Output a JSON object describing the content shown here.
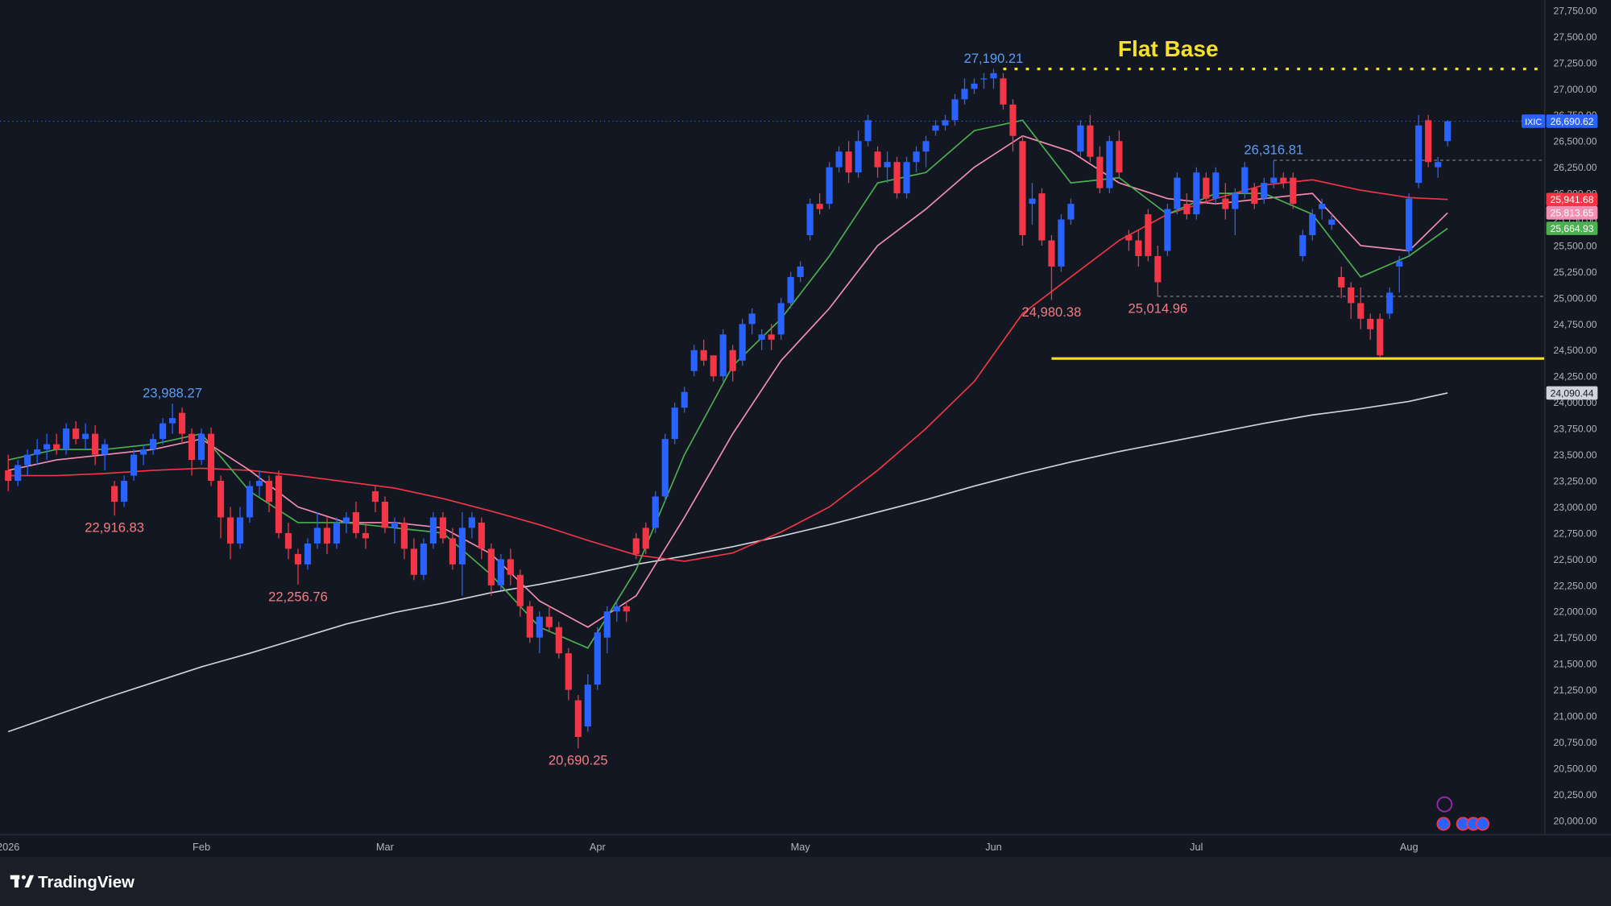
{
  "chart_data": {
    "type": "candlestick",
    "title": "Flat Base",
    "symbol": "IXIC",
    "watermark": "TradingView",
    "up_color": "#2962ff",
    "down_color": "#f23645",
    "last_label": "26,690.62",
    "ohlc": [
      [
        23350,
        23500,
        23150,
        23250
      ],
      [
        23250,
        23450,
        23200,
        23400
      ],
      [
        23400,
        23550,
        23300,
        23500
      ],
      [
        23500,
        23650,
        23400,
        23550
      ],
      [
        23550,
        23700,
        23450,
        23600
      ],
      [
        23600,
        23700,
        23500,
        23550
      ],
      [
        23550,
        23800,
        23500,
        23750
      ],
      [
        23750,
        23820,
        23600,
        23650
      ],
      [
        23650,
        23800,
        23550,
        23700
      ],
      [
        23700,
        23780,
        23400,
        23500
      ],
      [
        23500,
        23650,
        23350,
        23600
      ],
      [
        23200,
        23250,
        22916.83,
        23050
      ],
      [
        23050,
        23300,
        23000,
        23250
      ],
      [
        23300,
        23550,
        23250,
        23500
      ],
      [
        23500,
        23600,
        23400,
        23550
      ],
      [
        23550,
        23700,
        23500,
        23650
      ],
      [
        23650,
        23850,
        23600,
        23800
      ],
      [
        23800,
        23988.27,
        23700,
        23850
      ],
      [
        23900,
        23950,
        23600,
        23700
      ],
      [
        23700,
        23750,
        23300,
        23450
      ],
      [
        23450,
        23750,
        23400,
        23700
      ],
      [
        23700,
        23760,
        23200,
        23250
      ],
      [
        23250,
        23300,
        22700,
        22900
      ],
      [
        22900,
        23000,
        22500,
        22650
      ],
      [
        22650,
        23000,
        22600,
        22900
      ],
      [
        22900,
        23250,
        22850,
        23200
      ],
      [
        23200,
        23350,
        23100,
        23250
      ],
      [
        23250,
        23300,
        22950,
        23050
      ],
      [
        23300,
        23350,
        22700,
        22750
      ],
      [
        22750,
        22850,
        22500,
        22600
      ],
      [
        22550,
        22600,
        22256.76,
        22450
      ],
      [
        22450,
        22700,
        22400,
        22650
      ],
      [
        22650,
        22950,
        22600,
        22800
      ],
      [
        22800,
        22900,
        22550,
        22650
      ],
      [
        22650,
        22900,
        22600,
        22850
      ],
      [
        22850,
        22950,
        22750,
        22900
      ],
      [
        22950,
        23050,
        22700,
        22750
      ],
      [
        22750,
        22850,
        22600,
        22700
      ],
      [
        23150,
        23200,
        22950,
        23050
      ],
      [
        23050,
        23100,
        22750,
        22800
      ],
      [
        22800,
        22900,
        22650,
        22850
      ],
      [
        22850,
        22900,
        22500,
        22600
      ],
      [
        22600,
        22700,
        22300,
        22350
      ],
      [
        22350,
        22700,
        22300,
        22650
      ],
      [
        22650,
        22950,
        22600,
        22900
      ],
      [
        22900,
        22950,
        22650,
        22700
      ],
      [
        22700,
        22800,
        22400,
        22450
      ],
      [
        22450,
        22950,
        22150,
        22800
      ],
      [
        22800,
        22950,
        22700,
        22900
      ],
      [
        22850,
        22900,
        22500,
        22600
      ],
      [
        22600,
        22650,
        22150,
        22250
      ],
      [
        22250,
        22550,
        22200,
        22500
      ],
      [
        22500,
        22600,
        22250,
        22350
      ],
      [
        22350,
        22400,
        21950,
        22050
      ],
      [
        22050,
        22100,
        21700,
        21750
      ],
      [
        21750,
        22000,
        21600,
        21950
      ],
      [
        21950,
        22050,
        21800,
        21850
      ],
      [
        21850,
        21900,
        21550,
        21600
      ],
      [
        21600,
        21650,
        21150,
        21250
      ],
      [
        21150,
        21200,
        20690.25,
        20800
      ],
      [
        20900,
        21400,
        20850,
        21300
      ],
      [
        21300,
        21850,
        21250,
        21800
      ],
      [
        21750,
        22050,
        21600,
        22000
      ],
      [
        22000,
        22100,
        21900,
        22050
      ],
      [
        22050,
        22100,
        21900,
        22000
      ],
      [
        22700,
        22750,
        22500,
        22550
      ],
      [
        22800,
        22850,
        22550,
        22600
      ],
      [
        22800,
        23150,
        22750,
        23100
      ],
      [
        23100,
        23700,
        23050,
        23650
      ],
      [
        23650,
        24000,
        23600,
        23950
      ],
      [
        23950,
        24150,
        23900,
        24100
      ],
      [
        24300,
        24550,
        24250,
        24500
      ],
      [
        24500,
        24600,
        24350,
        24400
      ],
      [
        24450,
        24450,
        24200,
        24250
      ],
      [
        24250,
        24700,
        24200,
        24650
      ],
      [
        24500,
        24550,
        24200,
        24300
      ],
      [
        24400,
        24800,
        24350,
        24750
      ],
      [
        24750,
        24900,
        24650,
        24850
      ],
      [
        24600,
        24700,
        24500,
        24650
      ],
      [
        24650,
        24750,
        24500,
        24600
      ],
      [
        24650,
        25000,
        24600,
        24950
      ],
      [
        24950,
        25250,
        24900,
        25200
      ],
      [
        25200,
        25350,
        25150,
        25300
      ],
      [
        25600,
        25950,
        25550,
        25900
      ],
      [
        25900,
        26000,
        25800,
        25850
      ],
      [
        25900,
        26300,
        25850,
        26250
      ],
      [
        26250,
        26450,
        26200,
        26400
      ],
      [
        26400,
        26500,
        26100,
        26200
      ],
      [
        26200,
        26600,
        26150,
        26500
      ],
      [
        26500,
        26750,
        26450,
        26700
      ],
      [
        26400,
        26450,
        26150,
        26250
      ],
      [
        26250,
        26400,
        26100,
        26300
      ],
      [
        26300,
        26350,
        25950,
        26000
      ],
      [
        26000,
        26350,
        25950,
        26300
      ],
      [
        26300,
        26450,
        26200,
        26400
      ],
      [
        26400,
        26550,
        26250,
        26500
      ],
      [
        26600,
        26700,
        26550,
        26650
      ],
      [
        26650,
        26750,
        26600,
        26700
      ],
      [
        26700,
        26950,
        26650,
        26900
      ],
      [
        26900,
        27100,
        26850,
        27000
      ],
      [
        27000,
        27100,
        26950,
        27050
      ],
      [
        27100,
        27150,
        27000,
        27100
      ],
      [
        27100,
        27190.21,
        27000,
        27150
      ],
      [
        27100,
        27150,
        26800,
        26850
      ],
      [
        26850,
        26900,
        26400,
        26550
      ],
      [
        26500,
        26550,
        25500,
        25600
      ],
      [
        25900,
        26100,
        25700,
        25950
      ],
      [
        26000,
        26050,
        25500,
        25550
      ],
      [
        25550,
        25600,
        24980.38,
        25300
      ],
      [
        25300,
        25800,
        25250,
        25750
      ],
      [
        25750,
        25950,
        25700,
        25900
      ],
      [
        26400,
        26700,
        26350,
        26650
      ],
      [
        26650,
        26750,
        26300,
        26350
      ],
      [
        26350,
        26450,
        26000,
        26050
      ],
      [
        26050,
        26550,
        26000,
        26500
      ],
      [
        26500,
        26600,
        26150,
        26200
      ],
      [
        25600,
        25650,
        25450,
        25550
      ],
      [
        25550,
        25650,
        25300,
        25400
      ],
      [
        25800,
        25850,
        25350,
        25400
      ],
      [
        25400,
        25500,
        25014.96,
        25150
      ],
      [
        25450,
        25900,
        25400,
        25850
      ],
      [
        25850,
        26200,
        25800,
        26150
      ],
      [
        25900,
        26000,
        25750,
        25800
      ],
      [
        25800,
        26250,
        25750,
        26200
      ],
      [
        26150,
        26200,
        25900,
        25950
      ],
      [
        25950,
        26250,
        25900,
        26200
      ],
      [
        25950,
        26100,
        25750,
        25850
      ],
      [
        25850,
        26050,
        25600,
        26000
      ],
      [
        26000,
        26300,
        25950,
        26250
      ],
      [
        26050,
        26100,
        25850,
        25900
      ],
      [
        25950,
        26150,
        25900,
        26100
      ],
      [
        26100,
        26316.81,
        26050,
        26150
      ],
      [
        26150,
        26200,
        26050,
        26100
      ],
      [
        26150,
        26200,
        25850,
        25900
      ],
      [
        25400,
        25650,
        25350,
        25600
      ],
      [
        25600,
        25850,
        25550,
        25800
      ],
      [
        25850,
        25950,
        25750,
        25900
      ],
      [
        25700,
        25800,
        25650,
        25750
      ],
      [
        25200,
        25300,
        25000,
        25100
      ],
      [
        25100,
        25150,
        24800,
        24950
      ],
      [
        24950,
        25100,
        24700,
        24800
      ],
      [
        24800,
        24850,
        24600,
        24700
      ],
      [
        24800,
        24850,
        24430,
        24450
      ],
      [
        24850,
        25100,
        24800,
        25050
      ],
      [
        25300,
        25400,
        25050,
        25350
      ],
      [
        25450,
        26000,
        25400,
        25950
      ],
      [
        26100,
        26750,
        26050,
        26650
      ],
      [
        26700,
        26750,
        26250,
        26300
      ],
      [
        26250,
        26350,
        26150,
        26300
      ],
      [
        26500,
        26700,
        26450,
        26690.62
      ]
    ],
    "ma_x": [
      0,
      5,
      10,
      15,
      20,
      25,
      30,
      35,
      40,
      45,
      50,
      55,
      60,
      65,
      70,
      75,
      80,
      85,
      90,
      95,
      100,
      105,
      110,
      115,
      120,
      125,
      130,
      135,
      140,
      145,
      149
    ],
    "series": [
      {
        "color": "#d1d4dc",
        "last_label": "24,090.44",
        "label_text_color": "#131722",
        "values": [
          20850,
          21010,
          21170,
          21320,
          21470,
          21600,
          21740,
          21880,
          21990,
          22080,
          22180,
          22260,
          22350,
          22450,
          22530,
          22620,
          22720,
          22830,
          22950,
          23070,
          23200,
          23320,
          23430,
          23530,
          23620,
          23710,
          23800,
          23880,
          23940,
          24010,
          24090.44
        ]
      },
      {
        "color": "#f23645",
        "last_label": "25,941.68",
        "label_text_color": "#ffffff",
        "values": [
          23300,
          23300,
          23320,
          23350,
          23370,
          23350,
          23300,
          23240,
          23180,
          23080,
          22960,
          22830,
          22680,
          22540,
          22480,
          22560,
          22760,
          23000,
          23350,
          23750,
          24200,
          24850,
          25200,
          25550,
          25800,
          25950,
          26080,
          26130,
          26030,
          25960,
          25941.68
        ]
      },
      {
        "color": "#f48fb1",
        "last_label": "25,813.65",
        "label_text_color": "#ffffff",
        "values": [
          23350,
          23450,
          23500,
          23550,
          23650,
          23350,
          23000,
          22850,
          22850,
          22800,
          22550,
          22100,
          21850,
          22150,
          22900,
          23700,
          24400,
          24900,
          25500,
          25850,
          26250,
          26550,
          26400,
          26100,
          25950,
          25900,
          25950,
          26000,
          25500,
          25450,
          25813.65
        ]
      },
      {
        "color": "#4caf50",
        "last_label": "25,664.93",
        "label_text_color": "#ffffff",
        "values": [
          23450,
          23550,
          23550,
          23600,
          23700,
          23150,
          22850,
          22850,
          22800,
          22750,
          22350,
          21850,
          21650,
          22400,
          23500,
          24350,
          24800,
          25400,
          26100,
          26200,
          26600,
          26700,
          26100,
          26150,
          25800,
          26000,
          26000,
          25800,
          25200,
          25400,
          25664.93
        ]
      }
    ],
    "extreme_labels": [
      {
        "index": 17,
        "at": "high",
        "label": "23,988.27"
      },
      {
        "index": 11,
        "at": "low",
        "label": "22,916.83"
      },
      {
        "index": 30,
        "at": "low",
        "label": "22,256.76"
      },
      {
        "index": 59,
        "at": "low",
        "label": "20,690.25"
      },
      {
        "index": 102,
        "at": "high",
        "label": "27,190.21"
      },
      {
        "index": 108,
        "at": "low",
        "label": "24,980.38"
      },
      {
        "index": 119,
        "at": "low",
        "label": "25,014.96"
      },
      {
        "index": 131,
        "at": "high",
        "label": "26,316.81"
      }
    ],
    "lines": [
      {
        "value": 27190.21,
        "from": 103,
        "color": "#f5e12b",
        "dash": "3 8",
        "width": 2.5
      },
      {
        "value": 24420,
        "from": 108,
        "color": "#f5e12b",
        "dash": "none",
        "width": 2.5
      },
      {
        "value": 26316.81,
        "from": 131,
        "color": "#787b86",
        "dash": "3 3",
        "width": 1
      },
      {
        "value": 25014.96,
        "from": 119,
        "color": "#787b86",
        "dash": "3 3",
        "width": 1
      }
    ],
    "xlim": [
      -0.85,
      159
    ],
    "xticks": [
      {
        "value": 0,
        "label": "2026"
      },
      {
        "value": 20,
        "label": "Feb"
      },
      {
        "value": 39,
        "label": "Mar"
      },
      {
        "value": 61,
        "label": "Apr"
      },
      {
        "value": 82,
        "label": "May"
      },
      {
        "value": 102,
        "label": "Jun"
      },
      {
        "value": 123,
        "label": "Jul"
      },
      {
        "value": 145,
        "label": "Aug"
      }
    ],
    "ylim": [
      19870,
      27850
    ],
    "yticks": [
      {
        "value": 20000,
        "label": "20,000.00"
      },
      {
        "value": 20250,
        "label": "20,250.00"
      },
      {
        "value": 20500,
        "label": "20,500.00"
      },
      {
        "value": 20750,
        "label": "20,750.00"
      },
      {
        "value": 21000,
        "label": "21,000.00"
      },
      {
        "value": 21250,
        "label": "21,250.00"
      },
      {
        "value": 21500,
        "label": "21,500.00"
      },
      {
        "value": 21750,
        "label": "21,750.00"
      },
      {
        "value": 22000,
        "label": "22,000.00"
      },
      {
        "value": 22250,
        "label": "22,250.00"
      },
      {
        "value": 22500,
        "label": "22,500.00"
      },
      {
        "value": 22750,
        "label": "22,750.00"
      },
      {
        "value": 23000,
        "label": "23,000.00"
      },
      {
        "value": 23250,
        "label": "23,250.00"
      },
      {
        "value": 23500,
        "label": "23,500.00"
      },
      {
        "value": 23750,
        "label": "23,750.00"
      },
      {
        "value": 24000,
        "label": "24,000.00"
      },
      {
        "value": 24250,
        "label": "24,250.00"
      },
      {
        "value": 24500,
        "label": "24,500.00"
      },
      {
        "value": 24750,
        "label": "24,750.00"
      },
      {
        "value": 25000,
        "label": "25,000.00"
      },
      {
        "value": 25250,
        "label": "25,250.00"
      },
      {
        "value": 25500,
        "label": "25,500.00"
      },
      {
        "value": 25750,
        "label": "25,750.00"
      },
      {
        "value": 26000,
        "label": "26,000.00"
      },
      {
        "value": 26250,
        "label": "26,250.00"
      },
      {
        "value": 26500,
        "label": "26,500.00"
      },
      {
        "value": 26750,
        "label": "26,750.00"
      },
      {
        "value": 27000,
        "label": "27,000.00"
      },
      {
        "value": 27250,
        "label": "27,250.00"
      },
      {
        "value": 27500,
        "label": "27,500.00"
      },
      {
        "value": 27750,
        "label": "27,750.00"
      }
    ],
    "grid": false
  }
}
